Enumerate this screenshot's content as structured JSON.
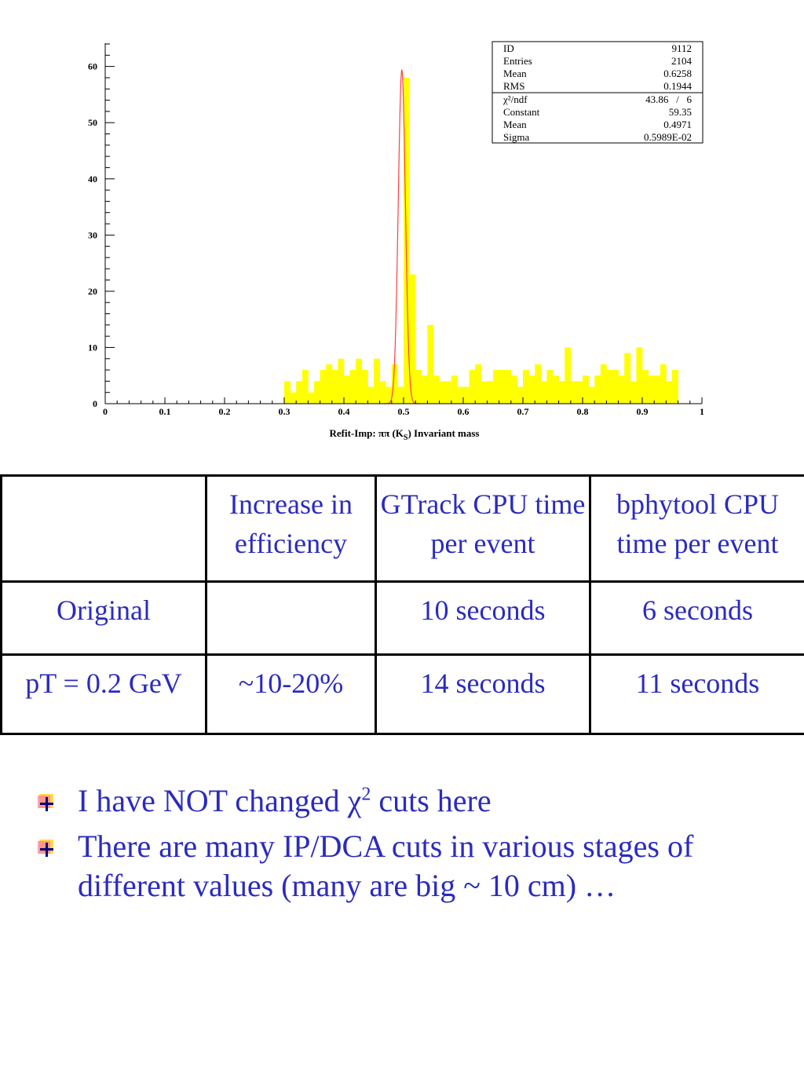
{
  "chart_data": {
    "type": "bar",
    "xlabel": "Refit-Imp: ππ (K",
    "xlabel_sub": "S",
    "xlabel_suffix": ") Invariant mass",
    "xlim": [
      0,
      1
    ],
    "ylim": [
      0,
      64
    ],
    "x_ticks": [
      "0",
      "0.1",
      "0.2",
      "0.3",
      "0.4",
      "0.5",
      "0.6",
      "0.7",
      "0.8",
      "0.9",
      "1"
    ],
    "y_ticks": [
      "0",
      "10",
      "20",
      "30",
      "40",
      "50",
      "60"
    ],
    "bin_start": 0.0,
    "bin_width": 0.01,
    "values": [
      0,
      0,
      0,
      0,
      0,
      0,
      0,
      0,
      0,
      0,
      0,
      0,
      0,
      0,
      0,
      0,
      0,
      0,
      0,
      0,
      0,
      0,
      0,
      0,
      0,
      0,
      0,
      0,
      0,
      0,
      4,
      2,
      4,
      6,
      2,
      4,
      6,
      7,
      6,
      8,
      5,
      6,
      8,
      6,
      3,
      8,
      4,
      3,
      7,
      3,
      58,
      23,
      6,
      5,
      14,
      5,
      4,
      4,
      5,
      3,
      3,
      6,
      7,
      4,
      4,
      6,
      6,
      6,
      5,
      3,
      6,
      5,
      7,
      4,
      6,
      5,
      4,
      10,
      4,
      4,
      5,
      3,
      5,
      7,
      6,
      6,
      5,
      9,
      4,
      10,
      6,
      5,
      5,
      7,
      4,
      6
    ],
    "fit": {
      "type": "gaussian",
      "constant": 59.35,
      "mean": 0.4971,
      "sigma": 0.005989
    },
    "fill_color": "#ffff00",
    "fit_color": "#ff4040"
  },
  "stats": {
    "rows": [
      {
        "label": "ID",
        "value": "9112"
      },
      {
        "label": "Entries",
        "value": "2104"
      },
      {
        "label": "Mean",
        "value": "0.6258"
      },
      {
        "label": "RMS",
        "value": "0.1944"
      }
    ],
    "fit_rows": [
      {
        "label": "χ²/ndf",
        "value": "43.86   /   6"
      },
      {
        "label": "Constant",
        "value": "59.35"
      },
      {
        "label": "Mean",
        "value": "0.4971"
      },
      {
        "label": "Sigma",
        "value": "0.5989E-02"
      }
    ]
  },
  "table": {
    "header": [
      "",
      "Increase in efficiency",
      "GTrack CPU time per event",
      "bphytool CPU time per event"
    ],
    "rows": [
      [
        "Original",
        "",
        "10 seconds",
        "6 seconds"
      ],
      [
        "pT = 0.2 GeV",
        "~10-20%",
        "14 seconds",
        "11 seconds"
      ]
    ]
  },
  "bullets": [
    {
      "pre": "I have NOT changed χ",
      "sup": "2",
      "post": " cuts here"
    },
    {
      "pre": "There are many IP/DCA cuts in various stages of different values (many are big ~ 10 cm) …",
      "sup": "",
      "post": ""
    }
  ],
  "colors": {
    "text_blue": "#2b2bbf"
  }
}
